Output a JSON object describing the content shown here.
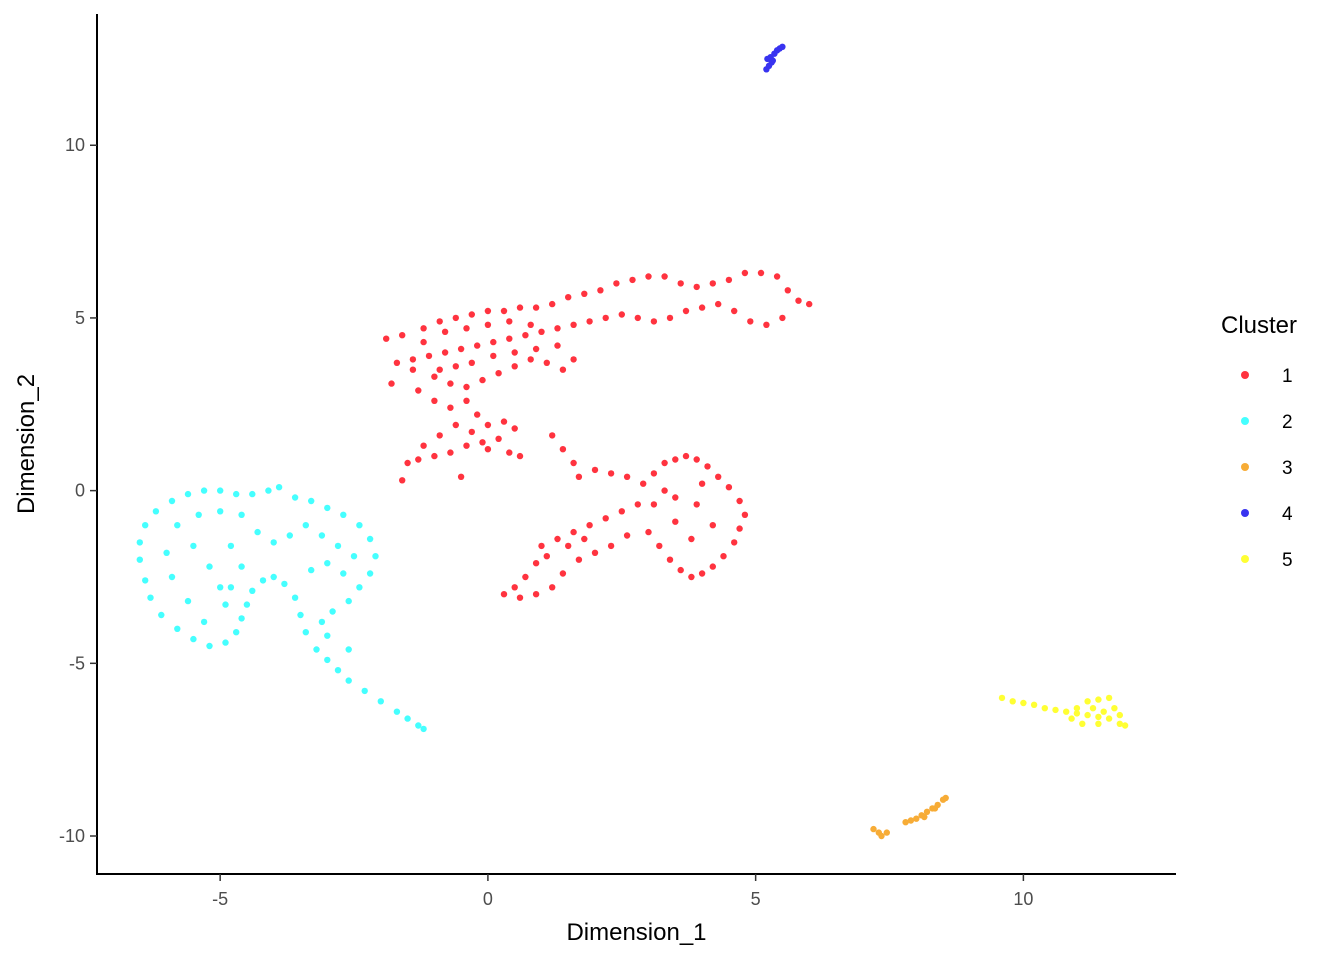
{
  "chart_data": {
    "type": "scatter",
    "title": "",
    "xlabel": "Dimension_1",
    "ylabel": "Dimension_2",
    "xlim": [
      -7.3,
      12.85
    ],
    "ylim": [
      -11.1,
      13.8
    ],
    "x_ticks": [
      -5,
      0,
      5,
      10
    ],
    "y_ticks": [
      -10,
      -5,
      0,
      5,
      10
    ],
    "x_tick_labels": [
      "-5",
      "0",
      "5",
      "10"
    ],
    "y_tick_labels": [
      "-10",
      "-5",
      "0",
      "5",
      "10"
    ],
    "grid": false,
    "legend": {
      "title": "Cluster",
      "position": "right",
      "entries": [
        "1",
        "2",
        "3",
        "4",
        "5"
      ]
    },
    "colors": {
      "1": "#FF333F",
      "2": "#45FFFF",
      "3": "#F7AC36",
      "4": "#3833F0",
      "5": "#FFFF33"
    },
    "series": [
      {
        "name": "1",
        "color": "#FF333F",
        "points": [
          [
            -1.9,
            4.4
          ],
          [
            -1.6,
            4.5
          ],
          [
            -1.2,
            4.7
          ],
          [
            -0.9,
            4.9
          ],
          [
            -0.6,
            5.0
          ],
          [
            -0.3,
            5.1
          ],
          [
            0.0,
            5.2
          ],
          [
            0.3,
            5.2
          ],
          [
            0.6,
            5.3
          ],
          [
            0.9,
            5.3
          ],
          [
            1.2,
            5.4
          ],
          [
            1.5,
            5.6
          ],
          [
            1.8,
            5.7
          ],
          [
            2.1,
            5.8
          ],
          [
            2.4,
            6.0
          ],
          [
            2.7,
            6.1
          ],
          [
            3.0,
            6.2
          ],
          [
            3.3,
            6.2
          ],
          [
            3.6,
            6.0
          ],
          [
            3.9,
            5.9
          ],
          [
            4.2,
            6.0
          ],
          [
            4.5,
            6.1
          ],
          [
            4.8,
            6.3
          ],
          [
            5.1,
            6.3
          ],
          [
            5.4,
            6.2
          ],
          [
            5.6,
            5.8
          ],
          [
            5.8,
            5.5
          ],
          [
            6.0,
            5.4
          ],
          [
            5.5,
            5.0
          ],
          [
            5.2,
            4.8
          ],
          [
            4.9,
            4.9
          ],
          [
            4.6,
            5.2
          ],
          [
            4.3,
            5.4
          ],
          [
            4.0,
            5.3
          ],
          [
            3.7,
            5.2
          ],
          [
            3.4,
            5.0
          ],
          [
            3.1,
            4.9
          ],
          [
            2.8,
            5.0
          ],
          [
            2.5,
            5.1
          ],
          [
            2.2,
            5.0
          ],
          [
            1.9,
            4.9
          ],
          [
            1.6,
            4.8
          ],
          [
            1.3,
            4.7
          ],
          [
            1.0,
            4.6
          ],
          [
            0.7,
            4.5
          ],
          [
            0.4,
            4.4
          ],
          [
            0.1,
            4.3
          ],
          [
            -0.2,
            4.2
          ],
          [
            -0.5,
            4.1
          ],
          [
            -0.8,
            4.0
          ],
          [
            -1.1,
            3.9
          ],
          [
            -1.4,
            3.8
          ],
          [
            -1.7,
            3.7
          ],
          [
            -1.8,
            3.1
          ],
          [
            -1.4,
            3.5
          ],
          [
            -1.0,
            3.3
          ],
          [
            -0.7,
            3.1
          ],
          [
            -0.4,
            3.0
          ],
          [
            -0.1,
            3.2
          ],
          [
            0.2,
            3.4
          ],
          [
            0.5,
            3.6
          ],
          [
            0.8,
            3.8
          ],
          [
            1.1,
            3.7
          ],
          [
            1.4,
            3.5
          ],
          [
            1.6,
            3.8
          ],
          [
            1.3,
            4.2
          ],
          [
            0.9,
            4.1
          ],
          [
            0.5,
            4.0
          ],
          [
            0.1,
            3.9
          ],
          [
            -0.3,
            3.7
          ],
          [
            -0.6,
            3.6
          ],
          [
            -0.9,
            3.5
          ],
          [
            -1.2,
            4.3
          ],
          [
            -0.8,
            4.6
          ],
          [
            -0.4,
            4.7
          ],
          [
            0.0,
            4.8
          ],
          [
            0.4,
            4.9
          ],
          [
            0.8,
            4.8
          ],
          [
            -1.3,
            2.9
          ],
          [
            -1.0,
            2.6
          ],
          [
            -0.7,
            2.4
          ],
          [
            -0.4,
            2.6
          ],
          [
            -0.2,
            2.2
          ],
          [
            0.0,
            1.9
          ],
          [
            0.3,
            2.0
          ],
          [
            0.5,
            1.8
          ],
          [
            0.2,
            1.5
          ],
          [
            -0.1,
            1.4
          ],
          [
            -0.4,
            1.3
          ],
          [
            -0.7,
            1.1
          ],
          [
            -1.0,
            1.0
          ],
          [
            -1.3,
            0.9
          ],
          [
            -1.5,
            0.8
          ],
          [
            -1.2,
            1.3
          ],
          [
            -0.9,
            1.6
          ],
          [
            -0.6,
            1.9
          ],
          [
            -0.3,
            1.7
          ],
          [
            0.0,
            1.2
          ],
          [
            0.4,
            1.1
          ],
          [
            0.6,
            1.0
          ],
          [
            -0.5,
            0.4
          ],
          [
            -1.6,
            0.3
          ],
          [
            1.2,
            1.6
          ],
          [
            1.4,
            1.2
          ],
          [
            1.6,
            0.8
          ],
          [
            1.7,
            0.4
          ],
          [
            2.0,
            0.6
          ],
          [
            2.3,
            0.5
          ],
          [
            2.6,
            0.4
          ],
          [
            2.9,
            0.2
          ],
          [
            3.1,
            0.5
          ],
          [
            3.3,
            0.8
          ],
          [
            3.5,
            0.9
          ],
          [
            3.7,
            1.0
          ],
          [
            3.9,
            0.9
          ],
          [
            4.1,
            0.7
          ],
          [
            4.3,
            0.4
          ],
          [
            4.5,
            0.1
          ],
          [
            4.7,
            -0.3
          ],
          [
            4.8,
            -0.7
          ],
          [
            4.7,
            -1.1
          ],
          [
            4.6,
            -1.5
          ],
          [
            4.4,
            -1.9
          ],
          [
            4.2,
            -2.2
          ],
          [
            4.0,
            -2.4
          ],
          [
            3.8,
            -2.5
          ],
          [
            3.6,
            -2.3
          ],
          [
            3.4,
            -2.0
          ],
          [
            3.2,
            -1.6
          ],
          [
            3.0,
            -1.2
          ],
          [
            3.1,
            -0.4
          ],
          [
            3.5,
            -0.2
          ],
          [
            3.9,
            -0.4
          ],
          [
            4.2,
            -1.0
          ],
          [
            3.8,
            -1.4
          ],
          [
            3.5,
            -0.9
          ],
          [
            3.3,
            0.0
          ],
          [
            4.0,
            0.2
          ],
          [
            2.8,
            -0.4
          ],
          [
            2.5,
            -0.6
          ],
          [
            2.2,
            -0.8
          ],
          [
            1.9,
            -1.0
          ],
          [
            1.6,
            -1.2
          ],
          [
            1.3,
            -1.4
          ],
          [
            1.0,
            -1.6
          ],
          [
            0.9,
            -2.1
          ],
          [
            0.7,
            -2.5
          ],
          [
            0.5,
            -2.8
          ],
          [
            0.3,
            -3.0
          ],
          [
            0.6,
            -3.1
          ],
          [
            0.9,
            -3.0
          ],
          [
            1.2,
            -2.8
          ],
          [
            1.4,
            -2.4
          ],
          [
            1.7,
            -2.0
          ],
          [
            2.0,
            -1.8
          ],
          [
            2.3,
            -1.6
          ],
          [
            2.6,
            -1.3
          ],
          [
            1.1,
            -1.9
          ],
          [
            1.5,
            -1.6
          ],
          [
            1.8,
            -1.4
          ]
        ]
      },
      {
        "name": "2",
        "color": "#45FFFF",
        "points": [
          [
            -6.5,
            -2.0
          ],
          [
            -6.4,
            -2.6
          ],
          [
            -6.3,
            -3.1
          ],
          [
            -6.1,
            -3.6
          ],
          [
            -5.8,
            -4.0
          ],
          [
            -5.5,
            -4.3
          ],
          [
            -5.2,
            -4.5
          ],
          [
            -4.9,
            -4.4
          ],
          [
            -4.7,
            -4.1
          ],
          [
            -4.6,
            -3.7
          ],
          [
            -4.5,
            -3.3
          ],
          [
            -4.4,
            -2.9
          ],
          [
            -4.2,
            -2.6
          ],
          [
            -4.0,
            -2.5
          ],
          [
            -3.8,
            -2.7
          ],
          [
            -3.6,
            -3.1
          ],
          [
            -3.5,
            -3.6
          ],
          [
            -3.4,
            -4.1
          ],
          [
            -3.2,
            -4.6
          ],
          [
            -3.0,
            -4.9
          ],
          [
            -2.8,
            -5.2
          ],
          [
            -2.6,
            -5.5
          ],
          [
            -2.3,
            -5.8
          ],
          [
            -2.0,
            -6.1
          ],
          [
            -1.7,
            -6.4
          ],
          [
            -1.5,
            -6.6
          ],
          [
            -1.3,
            -6.8
          ],
          [
            -1.2,
            -6.9
          ],
          [
            -6.5,
            -1.5
          ],
          [
            -6.4,
            -1.0
          ],
          [
            -6.2,
            -0.6
          ],
          [
            -5.9,
            -0.3
          ],
          [
            -5.6,
            -0.1
          ],
          [
            -5.3,
            0.0
          ],
          [
            -5.0,
            0.0
          ],
          [
            -4.7,
            -0.1
          ],
          [
            -4.4,
            -0.1
          ],
          [
            -4.1,
            0.0
          ],
          [
            -3.9,
            0.1
          ],
          [
            -3.6,
            -0.2
          ],
          [
            -3.3,
            -0.3
          ],
          [
            -3.0,
            -0.5
          ],
          [
            -2.7,
            -0.7
          ],
          [
            -2.4,
            -1.0
          ],
          [
            -2.2,
            -1.4
          ],
          [
            -2.1,
            -1.9
          ],
          [
            -2.2,
            -2.4
          ],
          [
            -2.4,
            -2.8
          ],
          [
            -2.6,
            -3.2
          ],
          [
            -2.9,
            -3.5
          ],
          [
            -3.1,
            -3.8
          ],
          [
            -5.8,
            -1.0
          ],
          [
            -5.5,
            -1.6
          ],
          [
            -5.2,
            -2.2
          ],
          [
            -5.0,
            -2.8
          ],
          [
            -5.6,
            -3.2
          ],
          [
            -5.9,
            -2.5
          ],
          [
            -6.0,
            -1.8
          ],
          [
            -5.4,
            -0.7
          ],
          [
            -5.0,
            -0.6
          ],
          [
            -4.6,
            -0.7
          ],
          [
            -4.3,
            -1.2
          ],
          [
            -4.0,
            -1.5
          ],
          [
            -3.7,
            -1.3
          ],
          [
            -3.4,
            -1.0
          ],
          [
            -3.1,
            -1.3
          ],
          [
            -2.8,
            -1.6
          ],
          [
            -2.5,
            -1.9
          ],
          [
            -2.7,
            -2.4
          ],
          [
            -3.0,
            -2.1
          ],
          [
            -3.3,
            -2.3
          ],
          [
            -4.8,
            -1.6
          ],
          [
            -4.6,
            -2.2
          ],
          [
            -3.0,
            -4.2
          ],
          [
            -2.6,
            -4.6
          ],
          [
            -5.3,
            -3.8
          ],
          [
            -4.9,
            -3.3
          ],
          [
            -4.8,
            -2.8
          ]
        ]
      },
      {
        "name": "3",
        "color": "#F7AC36",
        "points": [
          [
            7.2,
            -9.8
          ],
          [
            7.3,
            -9.9
          ],
          [
            7.35,
            -10.0
          ],
          [
            7.45,
            -9.9
          ],
          [
            7.8,
            -9.6
          ],
          [
            8.0,
            -9.5
          ],
          [
            8.1,
            -9.4
          ],
          [
            8.2,
            -9.3
          ],
          [
            8.3,
            -9.2
          ],
          [
            8.4,
            -9.1
          ],
          [
            8.5,
            -8.95
          ],
          [
            8.55,
            -8.9
          ],
          [
            8.15,
            -9.45
          ],
          [
            8.35,
            -9.2
          ],
          [
            7.9,
            -9.55
          ]
        ]
      },
      {
        "name": "4",
        "color": "#3833F0",
        "points": [
          [
            5.2,
            12.2
          ],
          [
            5.25,
            12.3
          ],
          [
            5.3,
            12.4
          ],
          [
            5.22,
            12.5
          ],
          [
            5.28,
            12.55
          ],
          [
            5.35,
            12.65
          ],
          [
            5.4,
            12.75
          ],
          [
            5.45,
            12.8
          ],
          [
            5.5,
            12.85
          ],
          [
            5.32,
            12.45
          ]
        ]
      },
      {
        "name": "5",
        "color": "#FFFF33",
        "points": [
          [
            9.6,
            -6.0
          ],
          [
            9.8,
            -6.1
          ],
          [
            10.0,
            -6.15
          ],
          [
            10.2,
            -6.2
          ],
          [
            10.4,
            -6.3
          ],
          [
            10.6,
            -6.35
          ],
          [
            10.8,
            -6.4
          ],
          [
            11.0,
            -6.45
          ],
          [
            11.2,
            -6.5
          ],
          [
            11.4,
            -6.55
          ],
          [
            11.6,
            -6.6
          ],
          [
            11.8,
            -6.75
          ],
          [
            11.9,
            -6.8
          ],
          [
            11.2,
            -6.1
          ],
          [
            11.4,
            -6.05
          ],
          [
            11.6,
            -6.0
          ],
          [
            11.0,
            -6.3
          ],
          [
            11.3,
            -6.3
          ],
          [
            11.5,
            -6.4
          ],
          [
            11.7,
            -6.3
          ],
          [
            11.1,
            -6.75
          ],
          [
            11.4,
            -6.75
          ],
          [
            10.9,
            -6.6
          ],
          [
            11.8,
            -6.5
          ]
        ]
      }
    ]
  }
}
